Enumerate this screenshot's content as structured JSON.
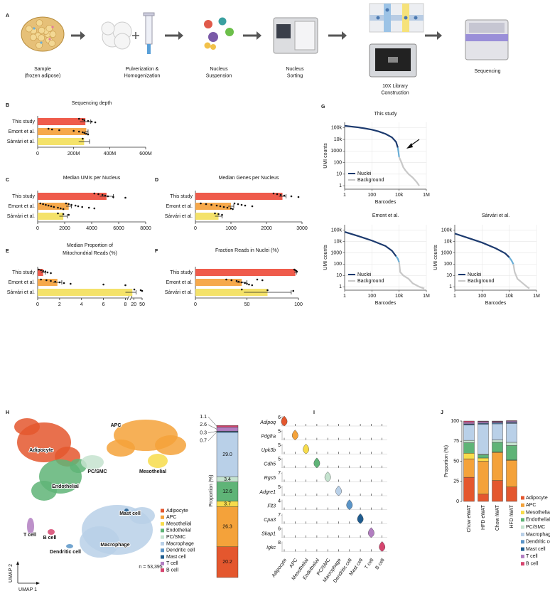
{
  "panels": [
    "A",
    "B",
    "C",
    "D",
    "E",
    "F",
    "G",
    "H",
    "I",
    "J"
  ],
  "workflow": {
    "steps": [
      [
        "Sample",
        "(frozen adipose)"
      ],
      [
        "Pulverization &",
        "Homogenization"
      ],
      [
        "Nucleus",
        "Suspension"
      ],
      [
        "Nucleus",
        "Sorting"
      ],
      [
        "10X Library",
        "Construction"
      ],
      [
        "Sequencing"
      ]
    ]
  },
  "umap": {
    "labels": [
      "Adipocyte",
      "APC",
      "Mesothelial",
      "PC/SMC",
      "Endothelial",
      "Mast cell",
      "T cell",
      "B cell",
      "Dendritic cell",
      "Macrophage"
    ],
    "n": "n = 53,395",
    "xlabel": "UMAP 1",
    "ylabel": "UMAP 2"
  },
  "chart_data": [
    {
      "type": "hbar",
      "title": "Sequencing depth",
      "categories": [
        "This study",
        "Emont et al.",
        "Sárvári et al."
      ],
      "colors": [
        "#ef5b4b",
        "#f6a94b",
        "#f4e26a"
      ],
      "values": [
        265000000,
        270000000,
        258000000
      ],
      "errors": [
        30000000,
        10000000,
        30000000
      ],
      "points": [
        [
          230000000,
          250000000,
          260000000,
          280000000,
          300000000,
          320000000
        ],
        [
          60000000,
          80000000,
          120000000,
          200000000,
          230000000,
          250000000,
          260000000,
          270000000,
          280000000
        ],
        [
          250000000
        ]
      ],
      "xlim": [
        0,
        600000000
      ],
      "xticks": [
        0,
        {
          "value": 200000000,
          "label": "200M"
        },
        {
          "value": 400000000,
          "label": "400M"
        },
        {
          "value": 600000000,
          "label": "600M"
        }
      ]
    },
    {
      "type": "hbar",
      "title": "Median UMIs per Nucleus",
      "categories": [
        "This study",
        "Emont et al.",
        "Sárvári et al."
      ],
      "colors": [
        "#ef5b4b",
        "#f6a94b",
        "#f4e26a"
      ],
      "values": [
        5100,
        2300,
        1900
      ],
      "errors": [
        500,
        200,
        300
      ],
      "points": [
        [
          4200,
          4500,
          4800,
          5000,
          5200,
          5600,
          6500
        ],
        [
          200,
          400,
          600,
          800,
          1000,
          1200,
          1500,
          1700,
          1900,
          2100,
          2300,
          2500,
          2800,
          3000,
          3300,
          3800,
          4200
        ],
        [
          1500,
          1900,
          2300
        ]
      ],
      "xlim": [
        0,
        8000
      ],
      "xticks": [
        0,
        2000,
        4000,
        6000,
        8000
      ]
    },
    {
      "type": "hbar",
      "title": "Median Genes per Nucleus",
      "categories": [
        "This study",
        "Emont et al.",
        "Sárvári et al."
      ],
      "colors": [
        "#ef5b4b",
        "#f6a94b",
        "#f4e26a"
      ],
      "values": [
        2450,
        1000,
        650
      ],
      "errors": [
        100,
        80,
        100
      ],
      "points": [
        [
          2200,
          2300,
          2400,
          2500,
          2700,
          2900
        ],
        [
          150,
          300,
          450,
          600,
          700,
          800,
          900,
          1000,
          1050,
          1100,
          1200,
          1300,
          1400,
          1600
        ],
        [
          550,
          650,
          750
        ]
      ],
      "xlim": [
        0,
        3000
      ],
      "xticks": [
        0,
        1000,
        2000,
        3000
      ]
    },
    {
      "type": "hbar",
      "title": [
        "Median Proportion of",
        "Mitochondrial Reads (%)"
      ],
      "categories": [
        "This study",
        "Emont et al.",
        "Sárvári et al."
      ],
      "colors": [
        "#ef5b4b",
        "#f6a94b",
        "#f4e26a"
      ],
      "values": [
        0.5,
        1.8,
        18
      ],
      "errors": [
        0.2,
        0.4,
        10
      ],
      "points": [
        [
          0.1,
          0.3,
          0.5,
          0.7,
          0.9,
          1.2
        ],
        [
          0.3,
          0.8,
          1.2,
          1.6,
          2.0,
          2.4,
          3,
          6,
          8
        ],
        [
          22,
          45,
          50
        ]
      ],
      "xlim": [
        0,
        50
      ],
      "xticks": [
        0,
        2,
        4,
        6,
        8,
        20,
        50
      ],
      "broken_axis": true
    },
    {
      "type": "hbar",
      "title": "Fraction Reads in Nuclei (%)",
      "categories": [
        "This study",
        "Emont et al.",
        "Sárvári et al."
      ],
      "colors": [
        "#ef5b4b",
        "#f6a94b",
        "#f4e26a"
      ],
      "values": [
        97,
        45,
        70
      ],
      "errors": [
        1,
        5,
        23
      ],
      "points": [
        [
          96,
          97,
          98,
          98.5
        ],
        [
          30,
          35,
          40,
          42,
          45,
          48,
          50,
          52,
          55,
          60,
          65
        ],
        [
          45,
          70,
          95
        ]
      ],
      "xlim": [
        0,
        100
      ],
      "xticks": [
        0,
        50,
        100
      ]
    },
    {
      "type": "line",
      "title": "This study",
      "xlabel": "Barcodes",
      "ylabel": "UMI counts",
      "log": true,
      "grid": true,
      "xlim": [
        1,
        1000000
      ],
      "ylim": [
        0.5,
        300000
      ],
      "xticks": [
        1,
        100,
        {
          "value": 10000,
          "label": "10k"
        },
        {
          "value": 1000000,
          "label": "1M"
        }
      ],
      "yticks": [
        1,
        10,
        100,
        1000,
        {
          "value": 10000,
          "label": "10k"
        },
        {
          "value": 100000,
          "label": "100k"
        }
      ],
      "series": [
        {
          "name": "Nuclei",
          "color": "#1c3a6e",
          "x": [
            1,
            3,
            10,
            30,
            100,
            300,
            1000,
            3000,
            6000,
            8000
          ],
          "values": [
            150000,
            130000,
            110000,
            90000,
            70000,
            50000,
            30000,
            15000,
            6000,
            2000
          ]
        },
        {
          "color": "#6aaed6",
          "x": [
            8000,
            9000,
            10000
          ],
          "values": [
            2000,
            800,
            300
          ]
        },
        {
          "name": "Background",
          "color": "#c8c8c8",
          "x": [
            10000,
            15000,
            20000,
            30000,
            50000,
            100000,
            200000,
            300000
          ],
          "values": [
            300,
            100,
            40,
            20,
            10,
            5,
            2,
            1
          ]
        }
      ]
    },
    {
      "type": "line",
      "title": "Emont et al.",
      "xlabel": "Barcodes",
      "ylabel": "UMI counts",
      "log": true,
      "grid": true,
      "xlim": [
        1,
        1000000
      ],
      "ylim": [
        0.5,
        300000
      ],
      "xticks": [
        1,
        100,
        {
          "value": 10000,
          "label": "10k"
        },
        {
          "value": 1000000,
          "label": "1M"
        }
      ],
      "yticks": [
        1,
        10,
        100,
        1000,
        {
          "value": 10000,
          "label": "10k"
        },
        {
          "value": 100000,
          "label": "100k"
        }
      ],
      "series": [
        {
          "name": "Nuclei",
          "color": "#1c3a6e",
          "x": [
            1,
            10,
            100,
            1000,
            3000,
            6000
          ],
          "values": [
            70000,
            30000,
            12000,
            4000,
            1500,
            500
          ]
        },
        {
          "color": "#6aaed6",
          "x": [
            6000,
            8000,
            10000
          ],
          "values": [
            500,
            300,
            150
          ]
        },
        {
          "name": "Background",
          "color": "#c8c8c8",
          "x": [
            10000,
            12000,
            20000,
            50000,
            100000,
            300000,
            700000
          ],
          "values": [
            150,
            20,
            10,
            5,
            2,
            1,
            0.7
          ]
        }
      ]
    },
    {
      "type": "line",
      "title": "Sárvári et al.",
      "xlabel": "Barcodes",
      "ylabel": "UMI counts",
      "log": true,
      "grid": true,
      "xlim": [
        1,
        1000000
      ],
      "ylim": [
        0.5,
        300000
      ],
      "xticks": [
        1,
        100,
        {
          "value": 10000,
          "label": "10k"
        },
        {
          "value": 1000000,
          "label": "1M"
        }
      ],
      "yticks": [
        1,
        10,
        100,
        1000,
        {
          "value": 10000,
          "label": "10k"
        },
        {
          "value": 100000,
          "label": "100k"
        }
      ],
      "series": [
        {
          "name": "Nuclei",
          "color": "#1c3a6e",
          "x": [
            1,
            10,
            100,
            1000,
            5000,
            10000
          ],
          "values": [
            50000,
            20000,
            8000,
            2500,
            900,
            400
          ]
        },
        {
          "color": "#6aaed6",
          "x": [
            10000,
            15000,
            20000
          ],
          "values": [
            400,
            200,
            100
          ]
        },
        {
          "name": "Background",
          "color": "#c8c8c8",
          "x": [
            20000,
            25000,
            40000,
            100000,
            200000,
            300000
          ],
          "values": [
            100,
            20,
            5,
            2,
            1,
            0.7
          ]
        }
      ]
    },
    {
      "type": "stacked_bar",
      "ylabel": "Proportion (%)",
      "ylim": [
        0,
        100
      ],
      "series": [
        {
          "name": "Adipocyte",
          "color": "#e4572e",
          "values": [
            20.2
          ],
          "value_labels": [
            "20.2"
          ]
        },
        {
          "name": "APC",
          "color": "#f4a23a",
          "values": [
            26.3
          ],
          "value_labels": [
            "26.3"
          ]
        },
        {
          "name": "Mesothelial",
          "color": "#f7dc4b",
          "values": [
            3.7
          ],
          "value_labels": [
            "3.7"
          ]
        },
        {
          "name": "Endothelial",
          "color": "#5fb477",
          "values": [
            12.6
          ],
          "value_labels": [
            "12.6"
          ]
        },
        {
          "name": "PC/SMC",
          "color": "#c5e3cf",
          "values": [
            3.4
          ],
          "value_labels": [
            "3.4"
          ]
        },
        {
          "name": "Macrophage",
          "color": "#b9d0e8",
          "values": [
            29.0
          ],
          "value_labels": [
            "29.0"
          ]
        },
        {
          "name": "Dendritic cell",
          "color": "#5b95c8",
          "values": [
            0.7
          ],
          "value_labels": [
            "0.7"
          ]
        },
        {
          "name": "Mast cell",
          "color": "#1f5c8f",
          "values": [
            0.3
          ],
          "value_labels": [
            "0.3"
          ]
        },
        {
          "name": "T cell",
          "color": "#b27ec1",
          "values": [
            2.6
          ],
          "value_labels": [
            "2.6"
          ]
        },
        {
          "name": "B cell",
          "color": "#d6456f",
          "values": [
            1.1
          ],
          "value_labels": [
            "1.1"
          ]
        }
      ]
    },
    {
      "type": "violin",
      "genes": [
        "Adipoq",
        "Pdgfra",
        "Upk3b",
        "Cdh5",
        "Rgs5",
        "Adgre1",
        "Flt3",
        "Cpa3",
        "Skap1",
        "Igkc"
      ],
      "ymax": [
        6,
        5,
        5,
        5,
        7,
        5,
        4,
        7,
        6,
        8
      ],
      "categories": [
        "Adipocyte",
        "APC",
        "Mesothelial",
        "Endothelial",
        "PC/SMC",
        "Macrophage",
        "Dendritic cell",
        "Mast cell",
        "T cell",
        "B cell"
      ],
      "colors": [
        "#e4572e",
        "#f4a23a",
        "#f7dc4b",
        "#5fb477",
        "#c5e3cf",
        "#b9d0e8",
        "#5b95c8",
        "#1f5c8f",
        "#b27ec1",
        "#d6456f"
      ]
    },
    {
      "type": "stacked_bar",
      "ylabel": "Proportion (%)",
      "categories": [
        "Chow eWAT",
        "HFD eWAT",
        "Chow iWAT",
        "HFD iWAT"
      ],
      "ylim": [
        0,
        100
      ],
      "yticks": [
        0,
        25,
        50,
        75,
        100
      ],
      "series": [
        {
          "name": "Adipocyte",
          "color": "#e4572e",
          "values": [
            30,
            9,
            26,
            18
          ]
        },
        {
          "name": "APC",
          "color": "#f4a23a",
          "values": [
            23,
            41,
            35,
            33
          ]
        },
        {
          "name": "Mesothelial",
          "color": "#f7dc4b",
          "values": [
            7,
            4,
            0.5,
            0.5
          ]
        },
        {
          "name": "Endothelial",
          "color": "#5fb477",
          "values": [
            13,
            4,
            12,
            18
          ]
        },
        {
          "name": "PC/SMC",
          "color": "#c5e3cf",
          "values": [
            3,
            1,
            3,
            4
          ]
        },
        {
          "name": "Macrophage",
          "color": "#b9d0e8",
          "values": [
            19,
            37,
            20,
            23.5
          ]
        },
        {
          "name": "Dendritic cell",
          "color": "#5b95c8",
          "values": [
            1,
            1,
            1,
            1
          ]
        },
        {
          "name": "Mast cell",
          "color": "#1f5c8f",
          "values": [
            0.5,
            0.5,
            0.5,
            0.5
          ]
        },
        {
          "name": "T cell",
          "color": "#b27ec1",
          "values": [
            2,
            2,
            1.5,
            1.5
          ]
        },
        {
          "name": "B cell",
          "color": "#d6456f",
          "values": [
            1.5,
            0.5,
            0.5,
            0.5
          ]
        }
      ]
    }
  ]
}
